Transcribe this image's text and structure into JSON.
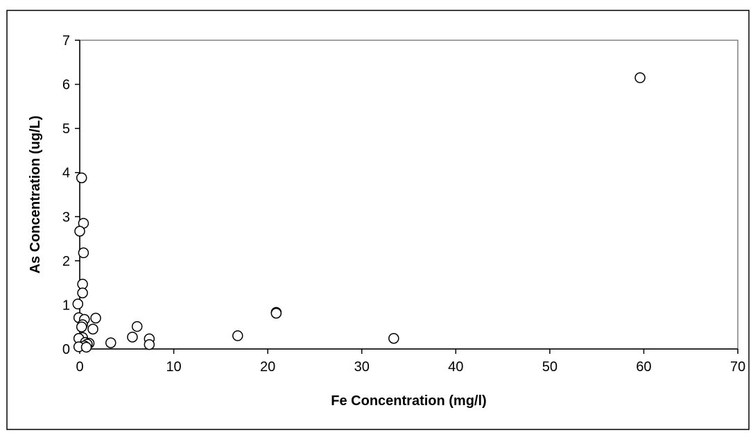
{
  "chart_data": {
    "type": "scatter",
    "title": "",
    "xlabel": "Fe Concentration (mg/l)",
    "ylabel": "As Concentration (ug/L)",
    "xlim": [
      0,
      70
    ],
    "ylim": [
      0,
      7
    ],
    "xticks": [
      0,
      10,
      20,
      30,
      40,
      50,
      60,
      70
    ],
    "yticks": [
      0,
      1,
      2,
      3,
      4,
      5,
      6,
      7
    ],
    "grid": false,
    "legend": "none",
    "colors": {
      "marker_stroke": "#000000",
      "marker_fill": "#ffffff",
      "plot_border": "#808080",
      "frame": "#000000"
    },
    "series": [
      {
        "points": [
          {
            "x": 59.6,
            "y": 6.15
          },
          {
            "x": 0.2,
            "y": 3.88
          },
          {
            "x": 0.4,
            "y": 2.85
          },
          {
            "x": 0.0,
            "y": 2.67
          },
          {
            "x": 0.4,
            "y": 2.18
          },
          {
            "x": 0.3,
            "y": 1.47
          },
          {
            "x": 0.3,
            "y": 1.27
          },
          {
            "x": -0.2,
            "y": 1.02
          },
          {
            "x": 20.9,
            "y": 0.83
          },
          {
            "x": 20.9,
            "y": 0.81
          },
          {
            "x": -0.1,
            "y": 0.71
          },
          {
            "x": 1.7,
            "y": 0.7
          },
          {
            "x": 0.5,
            "y": 0.67
          },
          {
            "x": 0.3,
            "y": 0.55
          },
          {
            "x": 0.2,
            "y": 0.5
          },
          {
            "x": 6.1,
            "y": 0.51
          },
          {
            "x": 1.4,
            "y": 0.45
          },
          {
            "x": 16.8,
            "y": 0.3
          },
          {
            "x": 5.6,
            "y": 0.27
          },
          {
            "x": 0.3,
            "y": 0.26
          },
          {
            "x": -0.1,
            "y": 0.24
          },
          {
            "x": 33.4,
            "y": 0.24
          },
          {
            "x": 7.4,
            "y": 0.23
          },
          {
            "x": 0.6,
            "y": 0.15
          },
          {
            "x": 3.3,
            "y": 0.14
          },
          {
            "x": 1.0,
            "y": 0.13
          },
          {
            "x": 0.8,
            "y": 0.11
          },
          {
            "x": 7.4,
            "y": 0.1
          },
          {
            "x": 0.5,
            "y": 0.07
          },
          {
            "x": -0.1,
            "y": 0.05
          },
          {
            "x": 0.7,
            "y": 0.04
          }
        ]
      }
    ]
  }
}
